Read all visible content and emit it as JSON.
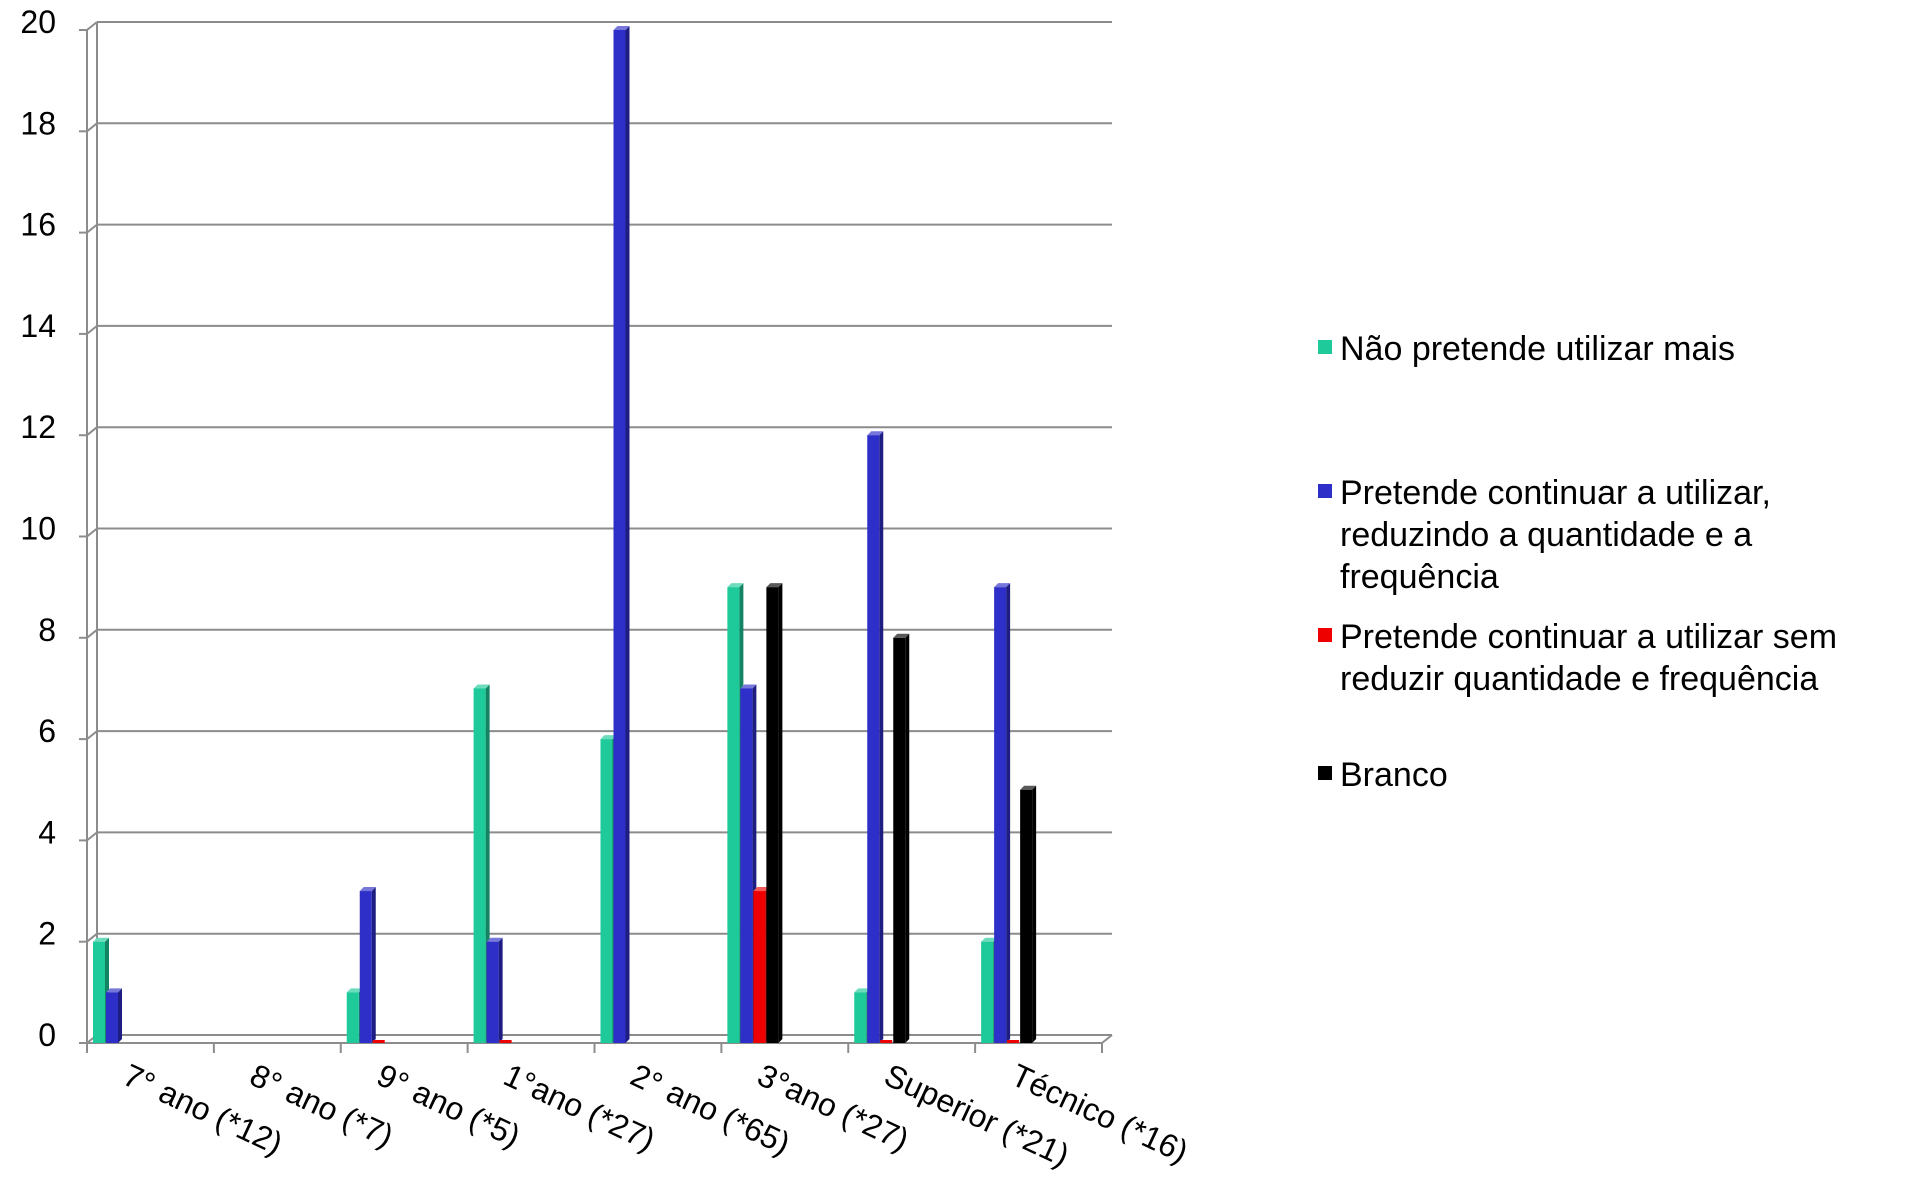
{
  "chart_data": {
    "type": "bar",
    "title": "",
    "xlabel": "",
    "ylabel": "",
    "categories": [
      "7° ano (*12)",
      "8° ano (*7)",
      "9° ano (*5)",
      "1°ano (*27)",
      "2° ano (*65)",
      "3°ano (*27)",
      "Superior (*21)",
      "Técnico (*16)"
    ],
    "ylim": [
      0,
      20
    ],
    "yticks": [
      "0",
      "2",
      "4",
      "6",
      "8",
      "10",
      "12",
      "14",
      "16",
      "18",
      "20"
    ],
    "grid": true,
    "legend_position": "right",
    "series": [
      {
        "name": "Não pretende utilizar mais",
        "color": "#1ec99a",
        "values": [
          2,
          0,
          1,
          7,
          6,
          9,
          1,
          2
        ]
      },
      {
        "name": "Pretende continuar a utilizar, reduzindo a quantidade e a frequência",
        "color": "#2e2ec8",
        "values": [
          1,
          0,
          3,
          2,
          20,
          7,
          12,
          9
        ]
      },
      {
        "name": "Pretende continuar a utilizar sem reduzir quantidade e frequência",
        "color": "#ee0000",
        "values": [
          0,
          0,
          0,
          0,
          0,
          3,
          0,
          0
        ]
      },
      {
        "name": "Branco",
        "color": "#000000",
        "values": [
          0,
          0,
          0,
          0,
          0,
          9,
          8,
          5
        ]
      }
    ]
  }
}
